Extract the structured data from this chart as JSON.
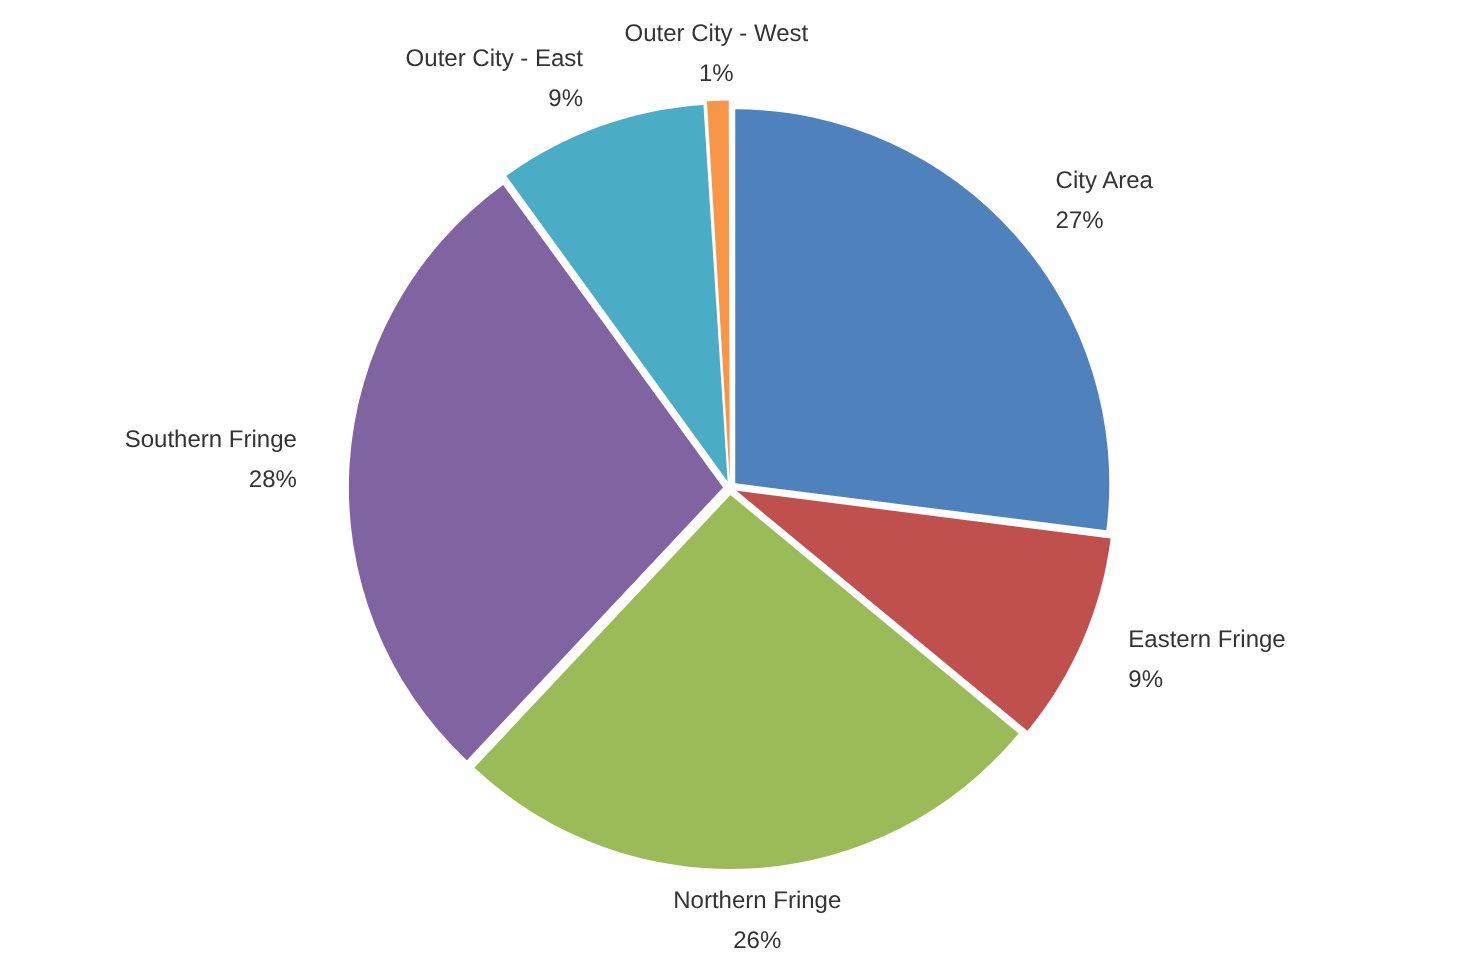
{
  "chart_data": {
    "type": "pie",
    "categories": [
      "City Area",
      "Eastern Fringe",
      "Northern Fringe",
      "Southern Fringe",
      "Outer City - East",
      "Outer City - West"
    ],
    "values": [
      27,
      9,
      26,
      28,
      9,
      1
    ],
    "colors": [
      "#4f81bd",
      "#c0504d",
      "#9bbb59",
      "#8064a2",
      "#4bacc6",
      "#f79646"
    ],
    "value_labels": [
      "27%",
      "9%",
      "26%",
      "28%",
      "9%",
      "1%"
    ]
  }
}
